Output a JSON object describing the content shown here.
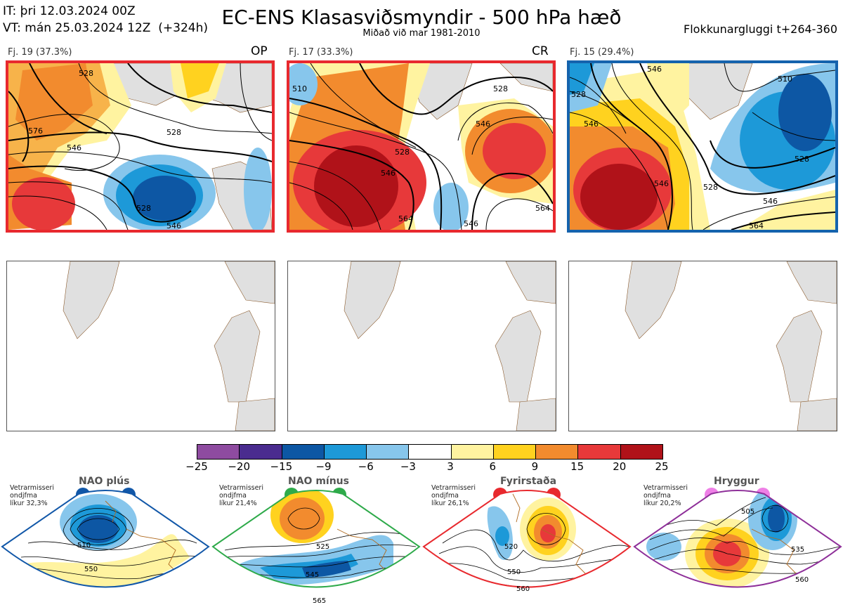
{
  "header": {
    "it_line": "IT: þri 12.03.2024 00Z",
    "vt_line": "VT: mán 25.03.2024 12Z  (+324h)",
    "title": "EC-ENS Klasasviðsmyndir - 500 hPa hæð",
    "subtitle": "Miðað við mar 1981-2010",
    "window": "Flokkunargluggi t+264-360"
  },
  "clusters": [
    {
      "label": "Fj. 19 (37.3%)",
      "tag": "OP",
      "border_color": "#e8292e",
      "contour_labels": [
        "528",
        "546",
        "528",
        "546",
        "528",
        "576"
      ]
    },
    {
      "label": "Fj. 17 (33.3%)",
      "tag": "CR",
      "border_color": "#e8292e",
      "contour_labels": [
        "510",
        "528",
        "546",
        "528",
        "564",
        "546",
        "564",
        "546"
      ]
    },
    {
      "label": "Fj. 15 (29.4%)",
      "tag": "",
      "border_color": "#1563ad",
      "contour_labels": [
        "510",
        "528",
        "546",
        "528",
        "546",
        "564",
        "546",
        "546",
        "528"
      ]
    }
  ],
  "colorbar": {
    "ticks": [
      "−25",
      "−20",
      "−15",
      "−9",
      "−6",
      "−3",
      "3",
      "6",
      "9",
      "15",
      "20",
      "25"
    ],
    "colors": [
      "#8e4ba0",
      "#4a2c8f",
      "#0d57a4",
      "#1d99d8",
      "#87c6ec",
      "#ffffff",
      "#fff3a0",
      "#ffd21f",
      "#f28b2e",
      "#e7393a",
      "#b01219"
    ]
  },
  "regimes": [
    {
      "name": "NAO plús",
      "info": "Vetrarmisseri\nondjfma\nlíkur 32,3%",
      "dot_color": "#1157a8",
      "border_color": "#1157a8",
      "contour_labels": [
        "510",
        "550"
      ]
    },
    {
      "name": "NAO mínus",
      "info": "Vetrarmisseri\nondjfma\nlíkur 21,4%",
      "dot_color": "#2eaa4a",
      "border_color": "#2eaa4a",
      "contour_labels": [
        "525",
        "545",
        "565"
      ]
    },
    {
      "name": "Fyrirstaða",
      "info": "Vetrarmisseri\nondjfma\nlíkur 26,1%",
      "dot_color": "#e8292e",
      "border_color": "#e8292e",
      "contour_labels": [
        "520",
        "550",
        "560"
      ]
    },
    {
      "name": "Hryggur",
      "info": "Vetrarmisseri\nondjfma\nlíkur 20,2%",
      "dot_color": "#ee7fe6",
      "border_color": "#8e2f99",
      "contour_labels": [
        "505",
        "535",
        "560"
      ]
    }
  ],
  "colors": {
    "land": "#e0e0e0",
    "coast": "#8a5a2c"
  }
}
